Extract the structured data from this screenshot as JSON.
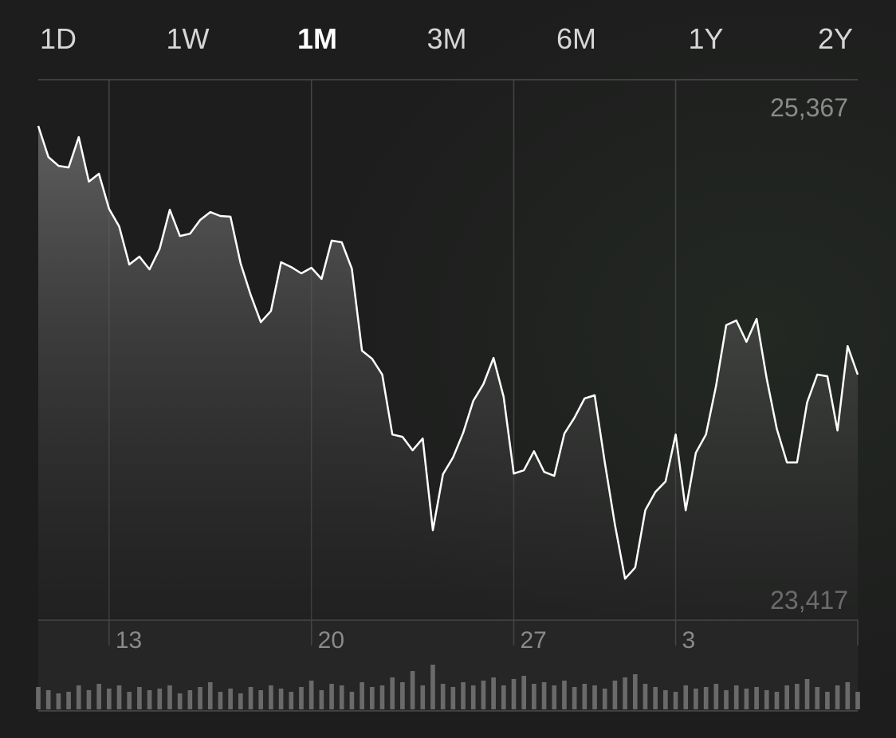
{
  "tabs": [
    "1D",
    "1W",
    "1M",
    "3M",
    "6M",
    "1Y",
    "2Y"
  ],
  "selected_tab": 2,
  "chart_data": {
    "type": "line",
    "categories": [
      null,
      null,
      null,
      null,
      null,
      null,
      null,
      "13",
      null,
      null,
      null,
      null,
      null,
      null,
      null,
      null,
      null,
      null,
      null,
      null,
      null,
      null,
      null,
      null,
      null,
      null,
      null,
      "20",
      null,
      null,
      null,
      null,
      null,
      null,
      null,
      null,
      null,
      null,
      null,
      null,
      null,
      null,
      null,
      null,
      null,
      null,
      null,
      "27",
      null,
      null,
      null,
      null,
      null,
      null,
      null,
      null,
      null,
      null,
      null,
      null,
      null,
      null,
      null,
      "3",
      null,
      null,
      null,
      null,
      null,
      null,
      null,
      null,
      null,
      null,
      null,
      null,
      null,
      null,
      null,
      null,
      null,
      null
    ],
    "series": [
      {
        "color": "#ffffff",
        "values": [
          25367,
          25233,
          25195,
          25188,
          25319,
          25127,
          25161,
          25010,
          24934,
          24770,
          24804,
          24749,
          24838,
          25006,
          24893,
          24903,
          24962,
          24996,
          24979,
          24976,
          24776,
          24639,
          24522,
          24570,
          24780,
          24759,
          24732,
          24756,
          24708,
          24873,
          24866,
          24752,
          24399,
          24364,
          24296,
          24038,
          24028,
          23970,
          24021,
          23626,
          23867,
          23939,
          24045,
          24183,
          24255,
          24368,
          24200,
          23870,
          23884,
          23966,
          23877,
          23860,
          24042,
          24110,
          24193,
          24207,
          23918,
          23650,
          23417,
          23465,
          23712,
          23791,
          23836,
          24038,
          23712,
          23959,
          24038,
          24248,
          24509,
          24529,
          24437,
          24536,
          24279,
          24062,
          23918,
          23918,
          24176,
          24296,
          24289,
          24055,
          24419,
          24296
        ]
      }
    ],
    "volume": [
      28,
      24,
      20,
      22,
      30,
      24,
      32,
      26,
      30,
      22,
      28,
      24,
      26,
      30,
      20,
      24,
      28,
      34,
      22,
      26,
      20,
      28,
      24,
      30,
      26,
      22,
      28,
      36,
      24,
      32,
      30,
      22,
      34,
      28,
      30,
      40,
      34,
      48,
      30,
      56,
      32,
      28,
      34,
      30,
      36,
      40,
      30,
      38,
      42,
      32,
      34,
      30,
      36,
      28,
      32,
      30,
      26,
      36,
      40,
      44,
      32,
      28,
      24,
      22,
      30,
      26,
      28,
      32,
      24,
      30,
      26,
      28,
      24,
      22,
      30,
      32,
      38,
      28,
      22,
      30,
      34,
      22
    ],
    "ylim": [
      23239,
      25566
    ],
    "yticks": [
      {
        "value": 25367,
        "label": "25,367"
      },
      {
        "value": 23417,
        "label": "23,417"
      }
    ]
  }
}
